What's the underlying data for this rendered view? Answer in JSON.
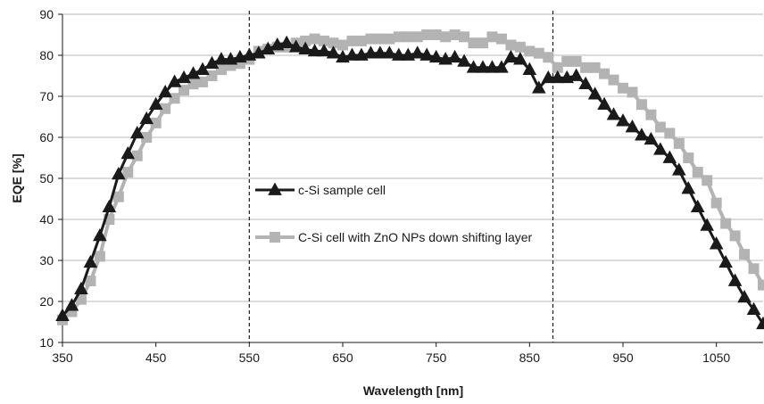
{
  "chart_data": {
    "type": "line",
    "title": "",
    "xlabel": "Wavelength [nm]",
    "ylabel": "EQE [%]",
    "xlim": [
      350,
      1100
    ],
    "ylim": [
      10,
      90
    ],
    "x_ticks": [
      "350",
      "450",
      "550",
      "650",
      "750",
      "850",
      "950",
      "1050"
    ],
    "y_ticks": [
      "10",
      "20",
      "30",
      "40",
      "50",
      "60",
      "70",
      "80",
      "90"
    ],
    "grid": "horizontal",
    "legend_position": "center-left",
    "reference_lines_x": [
      550,
      875
    ],
    "series": [
      {
        "name": "c-Si sample cell",
        "color": "#1a1a1a",
        "marker": "triangle",
        "points": [
          [
            350,
            16.5
          ],
          [
            360,
            19
          ],
          [
            370,
            23
          ],
          [
            380,
            29.5
          ],
          [
            390,
            36
          ],
          [
            400,
            43
          ],
          [
            410,
            51
          ],
          [
            420,
            56
          ],
          [
            430,
            61
          ],
          [
            440,
            64.5
          ],
          [
            450,
            68
          ],
          [
            460,
            71
          ],
          [
            470,
            73.5
          ],
          [
            480,
            74.5
          ],
          [
            490,
            75.5
          ],
          [
            500,
            76.5
          ],
          [
            510,
            78
          ],
          [
            520,
            79
          ],
          [
            530,
            79
          ],
          [
            540,
            79.5
          ],
          [
            550,
            80
          ],
          [
            560,
            80.5
          ],
          [
            570,
            81.5
          ],
          [
            580,
            82.5
          ],
          [
            590,
            83
          ],
          [
            600,
            82
          ],
          [
            610,
            81.5
          ],
          [
            620,
            81
          ],
          [
            630,
            81
          ],
          [
            640,
            80.5
          ],
          [
            650,
            79.5
          ],
          [
            660,
            80
          ],
          [
            670,
            80
          ],
          [
            680,
            80.5
          ],
          [
            690,
            80.5
          ],
          [
            700,
            80.5
          ],
          [
            710,
            80
          ],
          [
            720,
            80
          ],
          [
            730,
            80.5
          ],
          [
            740,
            80
          ],
          [
            750,
            79.5
          ],
          [
            760,
            79
          ],
          [
            770,
            79.5
          ],
          [
            780,
            78.5
          ],
          [
            790,
            77
          ],
          [
            800,
            77
          ],
          [
            810,
            77
          ],
          [
            820,
            77
          ],
          [
            830,
            79.5
          ],
          [
            840,
            79
          ],
          [
            850,
            76.5
          ],
          [
            860,
            72
          ],
          [
            870,
            74.5
          ],
          [
            880,
            74.5
          ],
          [
            890,
            74.5
          ],
          [
            900,
            75
          ],
          [
            910,
            73
          ],
          [
            920,
            70.5
          ],
          [
            930,
            68
          ],
          [
            940,
            65.5
          ],
          [
            950,
            64
          ],
          [
            960,
            62.5
          ],
          [
            970,
            60.5
          ],
          [
            980,
            59.5
          ],
          [
            990,
            57
          ],
          [
            1000,
            55
          ],
          [
            1010,
            52
          ],
          [
            1020,
            47.5
          ],
          [
            1030,
            43
          ],
          [
            1040,
            38.5
          ],
          [
            1050,
            34
          ],
          [
            1060,
            29.5
          ],
          [
            1070,
            25
          ],
          [
            1080,
            21
          ],
          [
            1090,
            18
          ],
          [
            1100,
            14.5
          ]
        ]
      },
      {
        "name": "C-Si cell with ZnO NPs down shifting layer",
        "color": "#b3b3b3",
        "marker": "square",
        "points": [
          [
            350,
            15.5
          ],
          [
            360,
            17.5
          ],
          [
            370,
            20.5
          ],
          [
            380,
            25
          ],
          [
            390,
            31
          ],
          [
            400,
            40
          ],
          [
            410,
            45.5
          ],
          [
            420,
            51.5
          ],
          [
            430,
            55.5
          ],
          [
            440,
            60
          ],
          [
            450,
            63.5
          ],
          [
            460,
            67
          ],
          [
            470,
            69.5
          ],
          [
            480,
            71.5
          ],
          [
            490,
            73
          ],
          [
            500,
            73.5
          ],
          [
            510,
            75
          ],
          [
            520,
            76.5
          ],
          [
            530,
            77.5
          ],
          [
            540,
            78
          ],
          [
            550,
            79
          ],
          [
            560,
            81
          ],
          [
            570,
            81.5
          ],
          [
            580,
            82
          ],
          [
            590,
            82
          ],
          [
            600,
            83
          ],
          [
            610,
            83.5
          ],
          [
            620,
            84
          ],
          [
            630,
            83.5
          ],
          [
            640,
            83
          ],
          [
            650,
            82.5
          ],
          [
            660,
            83.5
          ],
          [
            670,
            83.5
          ],
          [
            680,
            84
          ],
          [
            690,
            84
          ],
          [
            700,
            84
          ],
          [
            710,
            84.5
          ],
          [
            720,
            84.5
          ],
          [
            730,
            84.5
          ],
          [
            740,
            85
          ],
          [
            750,
            85
          ],
          [
            760,
            84.5
          ],
          [
            770,
            85
          ],
          [
            780,
            84.5
          ],
          [
            790,
            83
          ],
          [
            800,
            83
          ],
          [
            810,
            84.5
          ],
          [
            820,
            84
          ],
          [
            830,
            82.5
          ],
          [
            840,
            82
          ],
          [
            850,
            81
          ],
          [
            860,
            80.5
          ],
          [
            870,
            79.5
          ],
          [
            880,
            77
          ],
          [
            890,
            78.5
          ],
          [
            900,
            78.5
          ],
          [
            910,
            77
          ],
          [
            920,
            77
          ],
          [
            930,
            75.5
          ],
          [
            940,
            74
          ],
          [
            950,
            72
          ],
          [
            960,
            71
          ],
          [
            970,
            68
          ],
          [
            980,
            65.5
          ],
          [
            990,
            62.5
          ],
          [
            1000,
            61
          ],
          [
            1010,
            58.5
          ],
          [
            1020,
            55
          ],
          [
            1030,
            51.5
          ],
          [
            1040,
            49.5
          ],
          [
            1050,
            44
          ],
          [
            1060,
            39
          ],
          [
            1070,
            36
          ],
          [
            1080,
            31.5
          ],
          [
            1090,
            28
          ],
          [
            1100,
            24
          ]
        ]
      }
    ]
  }
}
